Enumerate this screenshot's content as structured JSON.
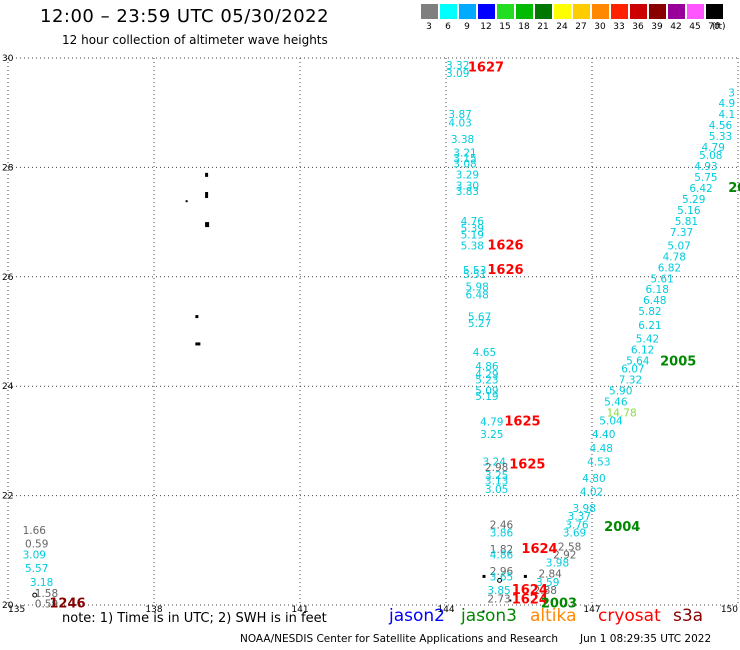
{
  "header": {
    "title": "12:00 – 23:59 UTC 05/30/2022",
    "subtitle": "12 hour collection of altimeter wave heights"
  },
  "legend": {
    "swatches": [
      {
        "label": "3",
        "color": "#7f7f7f"
      },
      {
        "label": "6",
        "color": "#00ffff"
      },
      {
        "label": "9",
        "color": "#00aaff"
      },
      {
        "label": "12",
        "color": "#0000ff"
      },
      {
        "label": "15",
        "color": "#22dd22"
      },
      {
        "label": "18",
        "color": "#00bb00"
      },
      {
        "label": "21",
        "color": "#007700"
      },
      {
        "label": "24",
        "color": "#ffff00"
      },
      {
        "label": "27",
        "color": "#ffcc00"
      },
      {
        "label": "30",
        "color": "#ff8800"
      },
      {
        "label": "33",
        "color": "#ff2200"
      },
      {
        "label": "36",
        "color": "#cc0000"
      },
      {
        "label": "39",
        "color": "#880000"
      },
      {
        "label": "42",
        "color": "#990099"
      },
      {
        "label": "45",
        "color": "#ff55ff"
      },
      {
        "label": "70",
        "color": "#000000"
      }
    ],
    "unit": "(ft)"
  },
  "map": {
    "lon_labels": [
      "135",
      "138",
      "141",
      "144",
      "147",
      "150"
    ],
    "lat_labels": [
      "20",
      "22",
      "24",
      "26",
      "28",
      "30"
    ],
    "lon_range": [
      135,
      150
    ],
    "lat_range": [
      20,
      30
    ],
    "colors": {
      "jason2": "#0000ff",
      "jason3": "#008800",
      "altika": "#ff8800",
      "cryosat": "#ff0000",
      "s3a": "#880000",
      "cyan": "#00ccdd",
      "gray": "#666666",
      "lightgreen": "#88dd44"
    },
    "swh_readings": [
      {
        "t": "3.32",
        "lon": 144.0,
        "lat": 29.8,
        "c": "cyan"
      },
      {
        "t": "3.09",
        "lon": 144.0,
        "lat": 29.65,
        "c": "cyan"
      },
      {
        "t": "3.87",
        "lon": 144.05,
        "lat": 28.9,
        "c": "cyan"
      },
      {
        "t": "4.03",
        "lon": 144.05,
        "lat": 28.75,
        "c": "cyan"
      },
      {
        "t": "3.38",
        "lon": 144.1,
        "lat": 28.45,
        "c": "cyan"
      },
      {
        "t": "3.21",
        "lon": 144.15,
        "lat": 28.2,
        "c": "cyan"
      },
      {
        "t": "3.15",
        "lon": 144.15,
        "lat": 28.1,
        "c": "cyan"
      },
      {
        "t": "3.08",
        "lon": 144.15,
        "lat": 28.0,
        "c": "cyan"
      },
      {
        "t": "3.29",
        "lon": 144.2,
        "lat": 27.8,
        "c": "cyan"
      },
      {
        "t": "3.30",
        "lon": 144.2,
        "lat": 27.6,
        "c": "cyan"
      },
      {
        "t": "3.83",
        "lon": 144.2,
        "lat": 27.5,
        "c": "cyan"
      },
      {
        "t": "4.76",
        "lon": 144.3,
        "lat": 26.95,
        "c": "cyan"
      },
      {
        "t": "5.39",
        "lon": 144.3,
        "lat": 26.82,
        "c": "cyan"
      },
      {
        "t": "5.19",
        "lon": 144.3,
        "lat": 26.7,
        "c": "cyan"
      },
      {
        "t": "5.38",
        "lon": 144.3,
        "lat": 26.5,
        "c": "cyan"
      },
      {
        "t": "5.53",
        "lon": 144.35,
        "lat": 26.05,
        "c": "cyan"
      },
      {
        "t": "5.51",
        "lon": 144.35,
        "lat": 25.98,
        "c": "cyan"
      },
      {
        "t": "5.98",
        "lon": 144.4,
        "lat": 25.75,
        "c": "cyan"
      },
      {
        "t": "6.48",
        "lon": 144.4,
        "lat": 25.6,
        "c": "cyan"
      },
      {
        "t": "5.67",
        "lon": 144.45,
        "lat": 25.2,
        "c": "cyan"
      },
      {
        "t": "5.27",
        "lon": 144.45,
        "lat": 25.08,
        "c": "cyan"
      },
      {
        "t": "4.65",
        "lon": 144.55,
        "lat": 24.55,
        "c": "cyan"
      },
      {
        "t": "4.86",
        "lon": 144.6,
        "lat": 24.3,
        "c": "cyan"
      },
      {
        "t": "4.29",
        "lon": 144.6,
        "lat": 24.15,
        "c": "cyan"
      },
      {
        "t": "5.23",
        "lon": 144.6,
        "lat": 24.05,
        "c": "cyan"
      },
      {
        "t": "5.09",
        "lon": 144.6,
        "lat": 23.85,
        "c": "cyan"
      },
      {
        "t": "5.19",
        "lon": 144.6,
        "lat": 23.75,
        "c": "cyan"
      },
      {
        "t": "4.79",
        "lon": 144.7,
        "lat": 23.28,
        "c": "cyan"
      },
      {
        "t": "3.25",
        "lon": 144.7,
        "lat": 23.05,
        "c": "cyan"
      },
      {
        "t": "3.24",
        "lon": 144.75,
        "lat": 22.55,
        "c": "cyan"
      },
      {
        "t": "2.98",
        "lon": 144.8,
        "lat": 22.45,
        "c": "gray"
      },
      {
        "t": "3.25",
        "lon": 144.8,
        "lat": 22.3,
        "c": "cyan"
      },
      {
        "t": "3.13",
        "lon": 144.8,
        "lat": 22.2,
        "c": "cyan"
      },
      {
        "t": "3.05",
        "lon": 144.8,
        "lat": 22.05,
        "c": "cyan"
      },
      {
        "t": "2.46",
        "lon": 144.9,
        "lat": 21.4,
        "c": "gray"
      },
      {
        "t": "3.86",
        "lon": 144.9,
        "lat": 21.25,
        "c": "cyan"
      },
      {
        "t": "1.82",
        "lon": 144.9,
        "lat": 20.95,
        "c": "gray"
      },
      {
        "t": "4.86",
        "lon": 144.9,
        "lat": 20.85,
        "c": "cyan"
      },
      {
        "t": "2.96",
        "lon": 144.9,
        "lat": 20.55,
        "c": "gray"
      },
      {
        "t": "3.65",
        "lon": 144.9,
        "lat": 20.45,
        "c": "cyan"
      },
      {
        "t": "3.85",
        "lon": 144.85,
        "lat": 20.2,
        "c": "cyan"
      },
      {
        "t": "2.73",
        "lon": 144.85,
        "lat": 20.05,
        "c": "gray"
      },
      {
        "t": "2.58",
        "lon": 146.3,
        "lat": 21.0,
        "c": "gray"
      },
      {
        "t": "2.92",
        "lon": 146.2,
        "lat": 20.85,
        "c": "gray"
      },
      {
        "t": "3.98",
        "lon": 146.05,
        "lat": 20.7,
        "c": "cyan"
      },
      {
        "t": "2.84",
        "lon": 145.9,
        "lat": 20.5,
        "c": "gray"
      },
      {
        "t": "3.59",
        "lon": 145.85,
        "lat": 20.35,
        "c": "cyan"
      },
      {
        "t": "2.88",
        "lon": 145.8,
        "lat": 20.2,
        "c": "gray"
      },
      {
        "t": "3.69",
        "lon": 146.4,
        "lat": 21.25,
        "c": "cyan"
      },
      {
        "t": "3.76",
        "lon": 146.45,
        "lat": 21.4,
        "c": "cyan"
      },
      {
        "t": "3.37",
        "lon": 146.5,
        "lat": 21.55,
        "c": "cyan"
      },
      {
        "t": "3.98",
        "lon": 146.6,
        "lat": 21.7,
        "c": "cyan"
      },
      {
        "t": "4.02",
        "lon": 146.75,
        "lat": 22.0,
        "c": "cyan"
      },
      {
        "t": "4.80",
        "lon": 146.8,
        "lat": 22.25,
        "c": "cyan"
      },
      {
        "t": "4.53",
        "lon": 146.9,
        "lat": 22.55,
        "c": "cyan"
      },
      {
        "t": "4.48",
        "lon": 146.95,
        "lat": 22.8,
        "c": "cyan"
      },
      {
        "t": "4.40",
        "lon": 147.0,
        "lat": 23.05,
        "c": "cyan"
      },
      {
        "t": "5.04",
        "lon": 147.15,
        "lat": 23.3,
        "c": "cyan"
      },
      {
        "t": "14.78",
        "lon": 147.3,
        "lat": 23.45,
        "c": "lightgreen"
      },
      {
        "t": "5.46",
        "lon": 147.25,
        "lat": 23.65,
        "c": "cyan"
      },
      {
        "t": "5.90",
        "lon": 147.35,
        "lat": 23.85,
        "c": "cyan"
      },
      {
        "t": "7.32",
        "lon": 147.55,
        "lat": 24.05,
        "c": "cyan"
      },
      {
        "t": "6.07",
        "lon": 147.6,
        "lat": 24.25,
        "c": "cyan"
      },
      {
        "t": "5.64",
        "lon": 147.7,
        "lat": 24.4,
        "c": "cyan"
      },
      {
        "t": "6.12",
        "lon": 147.8,
        "lat": 24.6,
        "c": "cyan"
      },
      {
        "t": "5.42",
        "lon": 147.9,
        "lat": 24.8,
        "c": "cyan"
      },
      {
        "t": "6.21",
        "lon": 147.95,
        "lat": 25.05,
        "c": "cyan"
      },
      {
        "t": "5.82",
        "lon": 147.95,
        "lat": 25.3,
        "c": "cyan"
      },
      {
        "t": "6.48",
        "lon": 148.05,
        "lat": 25.5,
        "c": "cyan"
      },
      {
        "t": "6.18",
        "lon": 148.1,
        "lat": 25.7,
        "c": "cyan"
      },
      {
        "t": "5.61",
        "lon": 148.2,
        "lat": 25.9,
        "c": "cyan"
      },
      {
        "t": "6.82",
        "lon": 148.35,
        "lat": 26.1,
        "c": "cyan"
      },
      {
        "t": "4.78",
        "lon": 148.45,
        "lat": 26.3,
        "c": "cyan"
      },
      {
        "t": "5.07",
        "lon": 148.55,
        "lat": 26.5,
        "c": "cyan"
      },
      {
        "t": "7.37",
        "lon": 148.6,
        "lat": 26.75,
        "c": "cyan"
      },
      {
        "t": "5.81",
        "lon": 148.7,
        "lat": 26.95,
        "c": "cyan"
      },
      {
        "t": "5.16",
        "lon": 148.75,
        "lat": 27.15,
        "c": "cyan"
      },
      {
        "t": "5.29",
        "lon": 148.85,
        "lat": 27.35,
        "c": "cyan"
      },
      {
        "t": "6.42",
        "lon": 149.0,
        "lat": 27.55,
        "c": "cyan"
      },
      {
        "t": "5.75",
        "lon": 149.1,
        "lat": 27.75,
        "c": "cyan"
      },
      {
        "t": "4.93",
        "lon": 149.1,
        "lat": 27.95,
        "c": "cyan"
      },
      {
        "t": "5.08",
        "lon": 149.2,
        "lat": 28.15,
        "c": "cyan"
      },
      {
        "t": "4.79",
        "lon": 149.25,
        "lat": 28.3,
        "c": "cyan"
      },
      {
        "t": "5.33",
        "lon": 149.4,
        "lat": 28.5,
        "c": "cyan"
      },
      {
        "t": "4.56",
        "lon": 149.4,
        "lat": 28.7,
        "c": "cyan"
      },
      {
        "t": "4.1",
        "lon": 149.6,
        "lat": 28.9,
        "c": "cyan"
      },
      {
        "t": "4.9",
        "lon": 149.6,
        "lat": 29.1,
        "c": "cyan"
      },
      {
        "t": "3",
        "lon": 149.8,
        "lat": 29.3,
        "c": "cyan"
      },
      {
        "t": "1.66",
        "lon": 135.3,
        "lat": 21.3,
        "c": "gray"
      },
      {
        "t": "0.59",
        "lon": 135.35,
        "lat": 21.05,
        "c": "gray"
      },
      {
        "t": "3.09",
        "lon": 135.3,
        "lat": 20.85,
        "c": "cyan"
      },
      {
        "t": "5.57",
        "lon": 135.35,
        "lat": 20.6,
        "c": "cyan"
      },
      {
        "t": "3.18",
        "lon": 135.45,
        "lat": 20.35,
        "c": "cyan"
      },
      {
        "t": "1.58",
        "lon": 135.55,
        "lat": 20.15,
        "c": "gray"
      },
      {
        "t": "0.59",
        "lon": 135.55,
        "lat": 19.95,
        "c": "gray"
      }
    ],
    "time_labels": [
      {
        "t": "1627",
        "lon": 144.45,
        "lat": 29.75,
        "c": "cryosat"
      },
      {
        "t": "1626",
        "lon": 144.85,
        "lat": 26.5,
        "c": "cryosat"
      },
      {
        "t": "1626",
        "lon": 144.85,
        "lat": 26.05,
        "c": "cryosat"
      },
      {
        "t": "1625",
        "lon": 145.2,
        "lat": 23.28,
        "c": "cryosat"
      },
      {
        "t": "1625",
        "lon": 145.3,
        "lat": 22.5,
        "c": "cryosat"
      },
      {
        "t": "1624",
        "lon": 145.55,
        "lat": 20.95,
        "c": "cryosat"
      },
      {
        "t": "1624",
        "lon": 145.35,
        "lat": 20.2,
        "c": "cryosat"
      },
      {
        "t": "1624",
        "lon": 145.35,
        "lat": 20.03,
        "c": "cryosat"
      },
      {
        "t": "2003",
        "lon": 145.95,
        "lat": 19.95,
        "c": "jason3"
      },
      {
        "t": "2004",
        "lon": 147.25,
        "lat": 21.35,
        "c": "jason3"
      },
      {
        "t": "2005",
        "lon": 148.4,
        "lat": 24.38,
        "c": "jason3"
      },
      {
        "t": "20",
        "lon": 149.8,
        "lat": 27.55,
        "c": "jason3"
      },
      {
        "t": "1246",
        "lon": 135.85,
        "lat": 19.95,
        "c": "s3a"
      }
    ],
    "islands": [
      {
        "lon": 138.65,
        "lat": 27.4,
        "w": 2,
        "h": 2
      },
      {
        "lon": 139.05,
        "lat": 27.9,
        "w": 3,
        "h": 4
      },
      {
        "lon": 139.05,
        "lat": 27.55,
        "w": 3,
        "h": 6
      },
      {
        "lon": 139.05,
        "lat": 27.0,
        "w": 4,
        "h": 5
      },
      {
        "lon": 138.85,
        "lat": 25.3,
        "w": 3,
        "h": 3
      },
      {
        "lon": 138.85,
        "lat": 24.8,
        "w": 5,
        "h": 3
      },
      {
        "lon": 144.75,
        "lat": 20.55,
        "w": 3,
        "h": 3
      },
      {
        "lon": 145.6,
        "lat": 20.55,
        "w": 3,
        "h": 3
      },
      {
        "lon": 145.3,
        "lat": 20.1,
        "w": 2,
        "h": 2
      },
      {
        "lon": 144.75,
        "lat": 19.9,
        "w": 2,
        "h": 2
      }
    ],
    "markers": [
      {
        "lon": 135.55,
        "lat": 20.18
      },
      {
        "lon": 145.1,
        "lat": 20.45
      }
    ]
  },
  "footer": {
    "note": "note:  1) Time is in UTC;  2) SWH is in feet",
    "satellites": [
      {
        "label": "jason2",
        "color": "#0000ff"
      },
      {
        "label": "jason3",
        "color": "#008800"
      },
      {
        "label": "altika",
        "color": "#ff8800"
      },
      {
        "label": "cryosat",
        "color": "#ff0000"
      },
      {
        "label": "s3a",
        "color": "#880000"
      }
    ],
    "credit": "NOAA/NESDIS Center for Satellite Applications and Research",
    "timestamp": "Jun  1 08:29:35 UTC 2022"
  }
}
